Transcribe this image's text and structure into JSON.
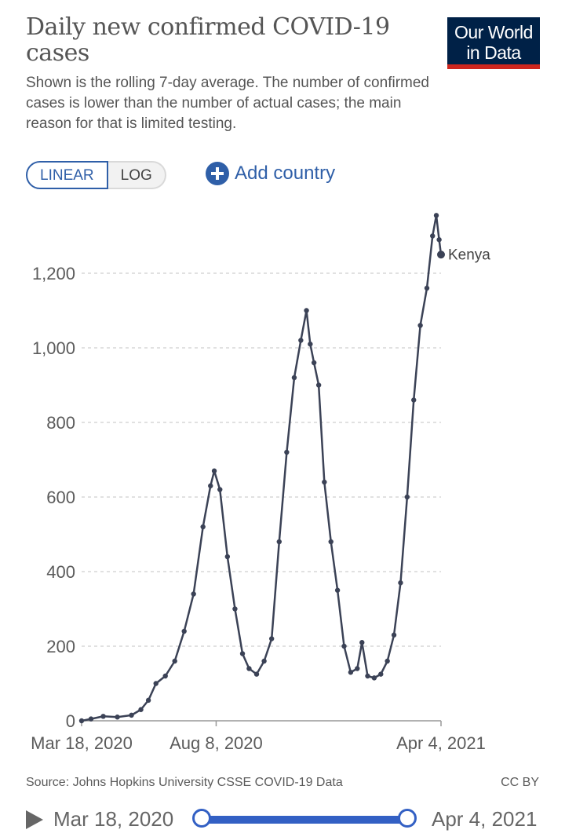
{
  "header": {
    "title": "Daily new confirmed COVID-19 cases",
    "subtitle": "Shown is the rolling 7-day average. The number of confirmed cases is lower than the number of actual cases; the main reason for that is limited testing.",
    "logo_line1": "Our World",
    "logo_line2": "in Data"
  },
  "controls": {
    "linear_label": "LINEAR",
    "log_label": "LOG",
    "add_country_label": "Add country",
    "active_scale": "linear"
  },
  "colors": {
    "series": "#3b4256",
    "accent": "#2f5fa8",
    "logo_bg": "#002147",
    "logo_bar": "#ce261e",
    "slider": "#3360c4"
  },
  "chart_data": {
    "type": "line",
    "title": "Daily new confirmed COVID-19 cases",
    "xlabel": "",
    "ylabel": "",
    "ylim": [
      0,
      1350
    ],
    "yticks": [
      0,
      200,
      400,
      600,
      800,
      1000,
      1200
    ],
    "ytick_labels": [
      "0",
      "200",
      "400",
      "600",
      "800",
      "1,000",
      "1,200"
    ],
    "xticks": [
      {
        "label": "Mar 18, 2020",
        "value": "2020-03-18"
      },
      {
        "label": "Aug 8, 2020",
        "value": "2020-08-08"
      },
      {
        "label": "Apr 4, 2021",
        "value": "2021-04-04"
      }
    ],
    "xlim": [
      "2020-03-18",
      "2021-04-04"
    ],
    "grid": "horizontal-dashed",
    "series": [
      {
        "name": "Kenya",
        "x": [
          "2020-03-18",
          "2020-03-28",
          "2020-04-10",
          "2020-04-25",
          "2020-05-10",
          "2020-05-20",
          "2020-05-28",
          "2020-06-05",
          "2020-06-15",
          "2020-06-25",
          "2020-07-05",
          "2020-07-15",
          "2020-07-25",
          "2020-08-02",
          "2020-08-06",
          "2020-08-12",
          "2020-08-20",
          "2020-08-28",
          "2020-09-05",
          "2020-09-12",
          "2020-09-20",
          "2020-09-28",
          "2020-10-06",
          "2020-10-14",
          "2020-10-22",
          "2020-10-30",
          "2020-11-06",
          "2020-11-12",
          "2020-11-16",
          "2020-11-20",
          "2020-11-25",
          "2020-12-01",
          "2020-12-08",
          "2020-12-15",
          "2020-12-22",
          "2020-12-29",
          "2021-01-05",
          "2021-01-10",
          "2021-01-16",
          "2021-01-23",
          "2021-01-30",
          "2021-02-06",
          "2021-02-13",
          "2021-02-20",
          "2021-02-27",
          "2021-03-06",
          "2021-03-13",
          "2021-03-20",
          "2021-03-26",
          "2021-03-30",
          "2021-04-02",
          "2021-04-04"
        ],
        "values": [
          0,
          5,
          12,
          10,
          15,
          30,
          55,
          100,
          120,
          160,
          240,
          340,
          520,
          630,
          670,
          620,
          440,
          300,
          180,
          140,
          125,
          160,
          220,
          480,
          720,
          920,
          1020,
          1100,
          1010,
          960,
          900,
          640,
          480,
          350,
          200,
          130,
          140,
          210,
          120,
          115,
          125,
          160,
          230,
          370,
          600,
          860,
          1060,
          1160,
          1300,
          1355,
          1290,
          1250
        ]
      }
    ],
    "annotations": [
      "Kenya"
    ]
  },
  "footer": {
    "source": "Source: Johns Hopkins University CSSE COVID-19 Data",
    "license": "CC BY"
  },
  "timeline": {
    "start_label": "Mar 18, 2020",
    "end_label": "Apr 4, 2021"
  }
}
